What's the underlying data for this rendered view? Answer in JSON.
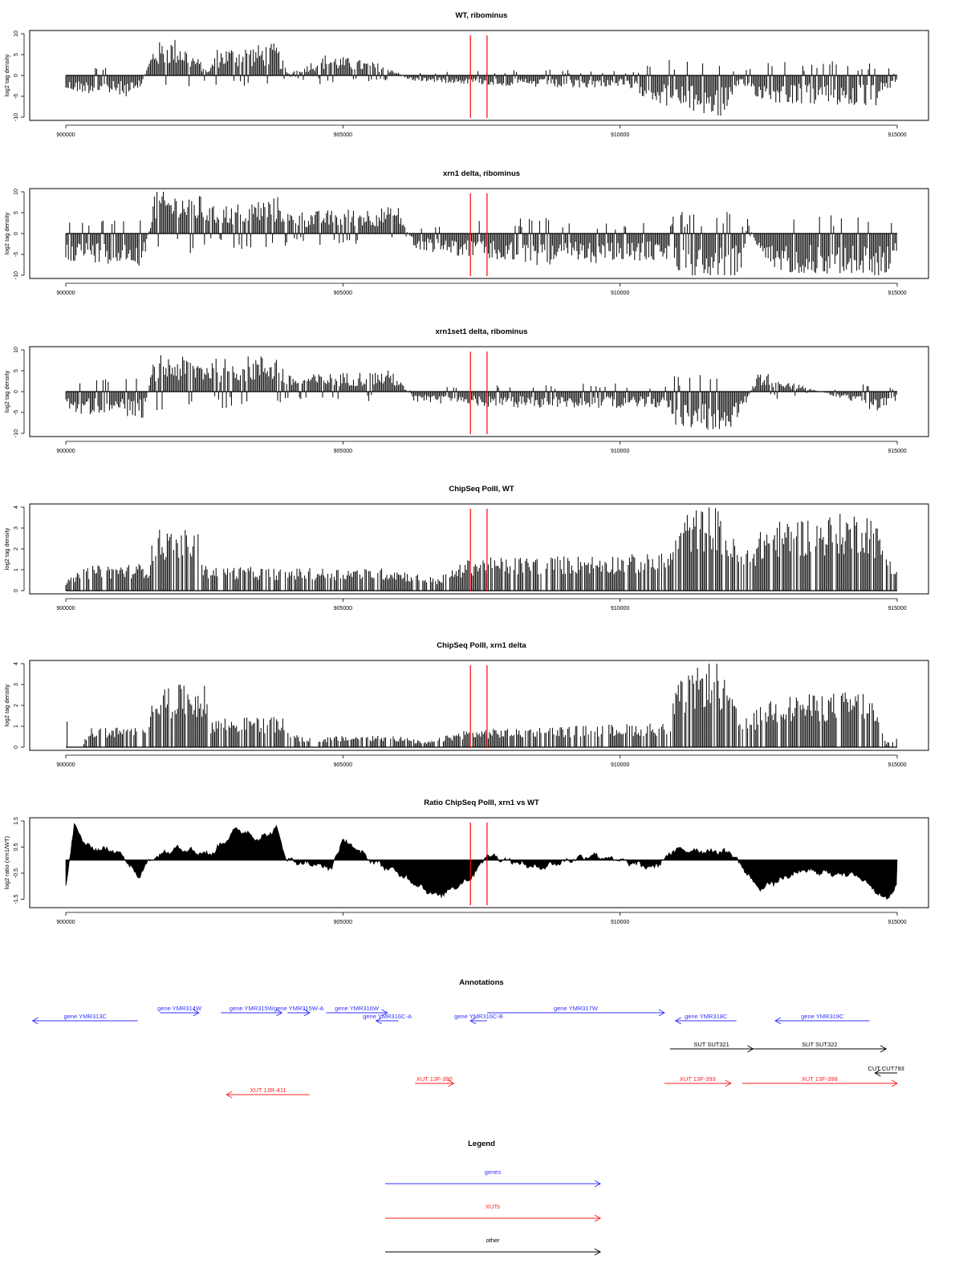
{
  "chart_data": [
    {
      "type": "bar",
      "title": "WT, ribominus",
      "ylabel": "log2 tag density",
      "xlim": [
        900000,
        915000
      ],
      "ylim": [
        -10,
        10
      ],
      "yticks": [
        -10,
        -5,
        0,
        5,
        10
      ],
      "xticks": [
        900000,
        905000,
        910000,
        915000
      ],
      "profile": [
        {
          "x": 900000,
          "y": -3
        },
        {
          "x": 901300,
          "y": -4
        },
        {
          "x": 901600,
          "y": 6
        },
        {
          "x": 902000,
          "y": 7
        },
        {
          "x": 902600,
          "y": 1
        },
        {
          "x": 902700,
          "y": 5
        },
        {
          "x": 903800,
          "y": 6
        },
        {
          "x": 904000,
          "y": 0.4
        },
        {
          "x": 904700,
          "y": 4
        },
        {
          "x": 905800,
          "y": 2
        },
        {
          "x": 906200,
          "y": -1
        },
        {
          "x": 908000,
          "y": -2
        },
        {
          "x": 909000,
          "y": -2.5
        },
        {
          "x": 910000,
          "y": -2
        },
        {
          "x": 910900,
          "y": -6
        },
        {
          "x": 911800,
          "y": -8
        },
        {
          "x": 912200,
          "y": -2
        },
        {
          "x": 912600,
          "y": -5
        },
        {
          "x": 914600,
          "y": -6
        },
        {
          "x": 915000,
          "y": -1
        }
      ],
      "markers": [
        907300,
        907600
      ]
    },
    {
      "type": "bar",
      "title": "xrn1 delta, ribominus",
      "ylabel": "log2 tag density",
      "xlim": [
        900000,
        915000
      ],
      "ylim": [
        -10,
        10
      ],
      "yticks": [
        -10,
        -5,
        0,
        5,
        10
      ],
      "xticks": [
        900000,
        905000,
        910000,
        915000
      ],
      "profile": [
        {
          "x": 900000,
          "y": -5
        },
        {
          "x": 901400,
          "y": -6
        },
        {
          "x": 901600,
          "y": 8
        },
        {
          "x": 902500,
          "y": 7
        },
        {
          "x": 902600,
          "y": 5
        },
        {
          "x": 903900,
          "y": 7
        },
        {
          "x": 904000,
          "y": 4
        },
        {
          "x": 906000,
          "y": 5
        },
        {
          "x": 906300,
          "y": -3
        },
        {
          "x": 907700,
          "y": -5
        },
        {
          "x": 908200,
          "y": -6
        },
        {
          "x": 910900,
          "y": -5
        },
        {
          "x": 911000,
          "y": -8
        },
        {
          "x": 912200,
          "y": -8
        },
        {
          "x": 912300,
          "y": 3
        },
        {
          "x": 912600,
          "y": -7
        },
        {
          "x": 914800,
          "y": -8
        },
        {
          "x": 915000,
          "y": -3
        }
      ],
      "markers": [
        907300,
        907600
      ]
    },
    {
      "type": "bar",
      "title": "xrn1set1 delta, ribominus",
      "ylabel": "log2 tag density",
      "xlim": [
        900000,
        915000
      ],
      "ylim": [
        -10,
        10
      ],
      "yticks": [
        -10,
        -5,
        0,
        5,
        10
      ],
      "xticks": [
        900000,
        905000,
        910000,
        915000
      ],
      "profile": [
        {
          "x": 900000,
          "y": -4
        },
        {
          "x": 901400,
          "y": -5
        },
        {
          "x": 901600,
          "y": 7
        },
        {
          "x": 902500,
          "y": 6
        },
        {
          "x": 903800,
          "y": 7
        },
        {
          "x": 904000,
          "y": 3
        },
        {
          "x": 905900,
          "y": 4
        },
        {
          "x": 906300,
          "y": -2
        },
        {
          "x": 908000,
          "y": -3
        },
        {
          "x": 910900,
          "y": -3
        },
        {
          "x": 911000,
          "y": -7
        },
        {
          "x": 912100,
          "y": -7
        },
        {
          "x": 912500,
          "y": 4
        },
        {
          "x": 914700,
          "y": -4
        },
        {
          "x": 915000,
          "y": -2
        }
      ],
      "markers": [
        907300,
        907600
      ]
    },
    {
      "type": "bar",
      "title": "ChipSeq PolII, WT",
      "ylabel": "log2 tag density",
      "xlim": [
        900000,
        915000
      ],
      "ylim": [
        0,
        4
      ],
      "yticks": [
        0,
        1,
        2,
        3,
        4
      ],
      "xticks": [
        900000,
        905000,
        910000,
        915000
      ],
      "profile": [
        {
          "x": 900000,
          "y": 0.4
        },
        {
          "x": 900400,
          "y": 1
        },
        {
          "x": 901500,
          "y": 1.1
        },
        {
          "x": 901600,
          "y": 2.5
        },
        {
          "x": 902400,
          "y": 2.4
        },
        {
          "x": 902500,
          "y": 1
        },
        {
          "x": 904000,
          "y": 0.9
        },
        {
          "x": 905900,
          "y": 0.9
        },
        {
          "x": 906700,
          "y": 0.5
        },
        {
          "x": 907300,
          "y": 1.3
        },
        {
          "x": 910900,
          "y": 1.5
        },
        {
          "x": 911000,
          "y": 3
        },
        {
          "x": 911700,
          "y": 3.5
        },
        {
          "x": 912200,
          "y": 1.5
        },
        {
          "x": 912700,
          "y": 2.8
        },
        {
          "x": 914500,
          "y": 3.2
        },
        {
          "x": 915000,
          "y": 1
        }
      ],
      "markers": [
        907300,
        907600
      ]
    },
    {
      "type": "bar",
      "title": "ChipSeq PolII, xrn1 delta",
      "ylabel": "log2 tag density",
      "xlim": [
        900000,
        915000
      ],
      "ylim": [
        0,
        4
      ],
      "yticks": [
        0,
        1,
        2,
        3,
        4
      ],
      "xticks": [
        900000,
        905000,
        910000,
        915000
      ],
      "profile": [
        {
          "x": 900000,
          "y": 0
        },
        {
          "x": 900300,
          "y": 0
        },
        {
          "x": 900400,
          "y": 0.8
        },
        {
          "x": 901400,
          "y": 0.8
        },
        {
          "x": 901600,
          "y": 2.5
        },
        {
          "x": 902500,
          "y": 2.5
        },
        {
          "x": 902600,
          "y": 1.2
        },
        {
          "x": 903900,
          "y": 1.2
        },
        {
          "x": 904200,
          "y": 0.4
        },
        {
          "x": 905900,
          "y": 0.5
        },
        {
          "x": 906500,
          "y": 0.2
        },
        {
          "x": 907200,
          "y": 0.7
        },
        {
          "x": 910900,
          "y": 1
        },
        {
          "x": 911000,
          "y": 2.5
        },
        {
          "x": 911700,
          "y": 3.7
        },
        {
          "x": 912200,
          "y": 1
        },
        {
          "x": 912700,
          "y": 2
        },
        {
          "x": 914500,
          "y": 2.3
        },
        {
          "x": 914800,
          "y": 0.2
        },
        {
          "x": 915000,
          "y": 0.5
        }
      ],
      "markers": [
        907300,
        907600
      ]
    },
    {
      "type": "area",
      "title": "Ratio ChipSeq PolII, xrn1 vs WT",
      "ylabel": "log2 ratio (xrn1/WT)",
      "xlim": [
        900000,
        915000
      ],
      "ylim": [
        -1.7,
        1.5
      ],
      "yticks": [
        -1.5,
        -0.5,
        0.5,
        1.5
      ],
      "xticks": [
        900000,
        905000,
        910000,
        915000
      ],
      "profile": [
        {
          "x": 900000,
          "y": -1
        },
        {
          "x": 900150,
          "y": 1.3
        },
        {
          "x": 900400,
          "y": 0.5
        },
        {
          "x": 901000,
          "y": 0.3
        },
        {
          "x": 901300,
          "y": -0.7
        },
        {
          "x": 901500,
          "y": 0
        },
        {
          "x": 902000,
          "y": 0.5
        },
        {
          "x": 902600,
          "y": 0.2
        },
        {
          "x": 903100,
          "y": 1.2
        },
        {
          "x": 903500,
          "y": 0.8
        },
        {
          "x": 903800,
          "y": 1.2
        },
        {
          "x": 904000,
          "y": 0
        },
        {
          "x": 904800,
          "y": -0.3
        },
        {
          "x": 905000,
          "y": 0.8
        },
        {
          "x": 905500,
          "y": 0
        },
        {
          "x": 906000,
          "y": -0.5
        },
        {
          "x": 906700,
          "y": -1.4
        },
        {
          "x": 907300,
          "y": -0.7
        },
        {
          "x": 907600,
          "y": 0.2
        },
        {
          "x": 908500,
          "y": -0.3
        },
        {
          "x": 909500,
          "y": 0.2
        },
        {
          "x": 910600,
          "y": -0.3
        },
        {
          "x": 911000,
          "y": 0.4
        },
        {
          "x": 912000,
          "y": 0.3
        },
        {
          "x": 912500,
          "y": -1.1
        },
        {
          "x": 913300,
          "y": -0.4
        },
        {
          "x": 914300,
          "y": -0.6
        },
        {
          "x": 914800,
          "y": -1.5
        },
        {
          "x": 915000,
          "y": -1
        }
      ],
      "markers": [
        907300,
        907600
      ]
    }
  ],
  "annotations": {
    "title": "Annotations",
    "features": [
      {
        "label": "gene YMR313C",
        "type": "gene",
        "dir": "left",
        "from": 899400,
        "to": 901300,
        "row": 1
      },
      {
        "label": "gene YMR314W",
        "type": "gene",
        "dir": "right",
        "from": 901700,
        "to": 902400,
        "row": 0
      },
      {
        "label": "gene YMR315W",
        "type": "gene",
        "dir": "right",
        "from": 902800,
        "to": 903900,
        "row": 0
      },
      {
        "label": "gene YMR315W-A",
        "type": "gene",
        "dir": "right",
        "from": 904000,
        "to": 904400,
        "row": 0
      },
      {
        "label": "gene YMR316W",
        "type": "gene",
        "dir": "right",
        "from": 904700,
        "to": 905800,
        "row": 0
      },
      {
        "label": "gene YMR316C-A",
        "type": "gene",
        "dir": "left",
        "from": 905600,
        "to": 906000,
        "row": 1
      },
      {
        "label": "gene YMR316C-B",
        "type": "gene",
        "dir": "left",
        "from": 907300,
        "to": 907600,
        "row": 1
      },
      {
        "label": "gene YMR317W",
        "type": "gene",
        "dir": "right",
        "from": 907600,
        "to": 910800,
        "row": 0
      },
      {
        "label": "gene YMR318C",
        "type": "gene",
        "dir": "left",
        "from": 911000,
        "to": 912100,
        "row": 1
      },
      {
        "label": "gene YMR319C",
        "type": "gene",
        "dir": "left",
        "from": 912800,
        "to": 914500,
        "row": 1
      },
      {
        "label": "SUT SUT321",
        "type": "other",
        "dir": "right",
        "from": 910900,
        "to": 912400,
        "row": 2
      },
      {
        "label": "SUT SUT322",
        "type": "other",
        "dir": "right",
        "from": 912400,
        "to": 914800,
        "row": 2
      },
      {
        "label": "CUT CUT793",
        "type": "other",
        "dir": "left",
        "from": 914600,
        "to": 915000,
        "row": 3
      },
      {
        "label": "XUT 13F-390",
        "type": "xut",
        "dir": "right",
        "from": 906300,
        "to": 907000,
        "row": 4
      },
      {
        "label": "XUT 13F-393",
        "type": "xut",
        "dir": "right",
        "from": 910800,
        "to": 912000,
        "row": 4
      },
      {
        "label": "XUT 13F-398",
        "type": "xut",
        "dir": "right",
        "from": 912200,
        "to": 915000,
        "row": 4
      },
      {
        "label": "XUT 13R-411",
        "type": "xut",
        "dir": "left",
        "from": 902900,
        "to": 904400,
        "row": 5
      }
    ]
  },
  "legend": {
    "title": "Legend",
    "items": [
      {
        "label": "genes",
        "color": "#3333ff"
      },
      {
        "label": "XUTs",
        "color": "#ff2222"
      },
      {
        "label": "other",
        "color": "#000000"
      }
    ]
  },
  "colors": {
    "marker": "#ff0000",
    "bars": "#000000",
    "gene": "#3333ff",
    "xut": "#ff2222",
    "other": "#000000"
  }
}
